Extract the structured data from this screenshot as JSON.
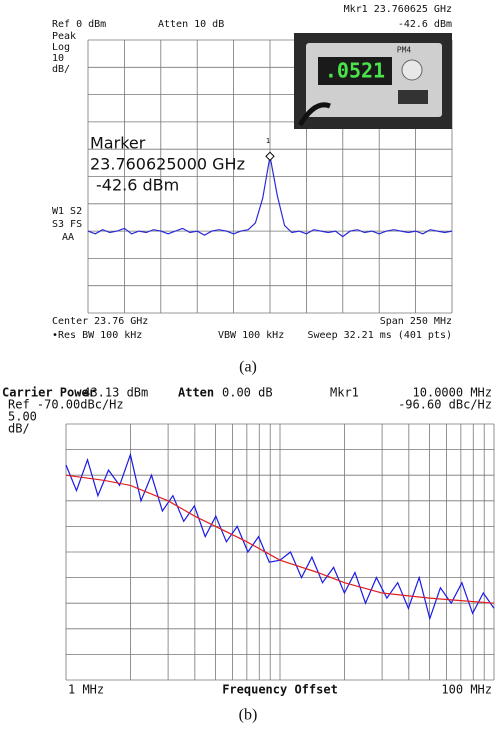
{
  "chart_data": [
    {
      "type": "line",
      "annotations": [
        "Ref 0 dBm",
        "Atten 10 dB",
        "Mkr1 23.760625 GHz",
        "-42.6 dBm",
        "Peak",
        "Log",
        "10",
        "dB/",
        "W1 S2",
        "S3 FS",
        "AA",
        "Marker",
        "23.760625000 GHz",
        "-42.6 dBm",
        "1",
        "Center 23.76 GHz",
        "Span 250 MHz",
        "•Res BW 100 kHz",
        "VBW 100 kHz",
        "Sweep 32.21 ms (401 pts)"
      ],
      "caption": "(a)",
      "inset": {
        "display": ".0521",
        "label": "PM4"
      },
      "xlim": [
        23.635,
        23.885
      ],
      "ylim": [
        -100,
        0
      ],
      "xgrid": [
        23.635,
        23.66,
        23.685,
        23.71,
        23.735,
        23.76,
        23.785,
        23.81,
        23.835,
        23.86,
        23.885
      ],
      "ygrid": [
        -100,
        -90,
        -80,
        -70,
        -60,
        -50,
        -40,
        -30,
        -20,
        -10,
        0
      ],
      "series": [
        {
          "color": "#2b2bd6",
          "x": [
            23.635,
            23.64,
            23.645,
            23.65,
            23.655,
            23.66,
            23.665,
            23.67,
            23.675,
            23.68,
            23.685,
            23.69,
            23.695,
            23.7,
            23.705,
            23.71,
            23.715,
            23.72,
            23.725,
            23.73,
            23.735,
            23.74,
            23.745,
            23.75,
            23.755,
            23.76,
            23.765,
            23.77,
            23.775,
            23.78,
            23.785,
            23.79,
            23.795,
            23.8,
            23.805,
            23.81,
            23.815,
            23.82,
            23.825,
            23.83,
            23.835,
            23.84,
            23.845,
            23.85,
            23.855,
            23.86,
            23.865,
            23.87,
            23.875,
            23.88,
            23.885
          ],
          "values": [
            -70,
            -71,
            -69.5,
            -70.5,
            -70,
            -69,
            -71,
            -70,
            -70.5,
            -69.5,
            -70,
            -71,
            -70,
            -69,
            -70.5,
            -70,
            -71.5,
            -70,
            -69.5,
            -70,
            -71,
            -70,
            -69.5,
            -67,
            -58,
            -42.6,
            -57,
            -68,
            -70.5,
            -70,
            -71,
            -69.5,
            -70,
            -70.5,
            -70,
            -72,
            -70,
            -69.5,
            -70.5,
            -70,
            -71,
            -70,
            -69.5,
            -70,
            -70.5,
            -70,
            -71,
            -69.5,
            -70,
            -70.5,
            -70
          ]
        }
      ]
    },
    {
      "type": "line",
      "annotations": [
        "Carrier Power",
        "-43.13 dBm",
        "Atten",
        "0.00 dB",
        "Mkr1",
        "10.0000 MHz",
        "Ref -70.00dBc/Hz",
        "-96.60 dBc/Hz",
        "5.00",
        "dB/"
      ],
      "xlabel": "Frequency Offset",
      "caption": "(b)",
      "xscale": "log",
      "xlim": [
        1,
        100
      ],
      "ylim": [
        -120,
        -70
      ],
      "xticks": [
        {
          "value": 1,
          "label": "1 MHz"
        },
        {
          "value": 100,
          "label": "100 MHz"
        }
      ],
      "xgrid": [
        1,
        2,
        3,
        4,
        5,
        6,
        7,
        8,
        9,
        10,
        20,
        30,
        40,
        50,
        60,
        70,
        80,
        90,
        100
      ],
      "ygrid": [
        -120,
        -115,
        -110,
        -105,
        -100,
        -95,
        -90,
        -85,
        -80,
        -75,
        -70
      ],
      "series": [
        {
          "color": "#1a1ae6",
          "x": [
            1,
            1.12,
            1.26,
            1.41,
            1.58,
            1.78,
            2,
            2.24,
            2.51,
            2.82,
            3.16,
            3.55,
            3.98,
            4.47,
            5.01,
            5.62,
            6.31,
            7.08,
            7.94,
            8.91,
            10,
            11.2,
            12.6,
            14.1,
            15.8,
            17.8,
            20,
            22.4,
            25.1,
            28.2,
            31.6,
            35.5,
            39.8,
            44.7,
            50.1,
            56.2,
            63.1,
            70.8,
            79.4,
            89.1,
            100
          ],
          "values": [
            -78,
            -83,
            -77,
            -84,
            -79,
            -82,
            -76,
            -85,
            -80,
            -87,
            -84,
            -89,
            -86,
            -92,
            -88,
            -93,
            -90,
            -95,
            -92,
            -97,
            -96.6,
            -95,
            -100,
            -96,
            -101,
            -98,
            -103,
            -99,
            -105,
            -100,
            -104,
            -101,
            -106,
            -100,
            -108,
            -102,
            -105,
            -101,
            -107,
            -103,
            -106
          ]
        },
        {
          "color": "#e02020",
          "x": [
            1,
            1.5,
            2,
            3,
            4,
            5,
            7,
            10,
            15,
            20,
            30,
            50,
            70,
            100
          ],
          "values": [
            -80,
            -81,
            -82,
            -85,
            -88,
            -90,
            -93,
            -96.6,
            -99,
            -101,
            -103,
            -104,
            -104.5,
            -105
          ]
        }
      ]
    }
  ]
}
